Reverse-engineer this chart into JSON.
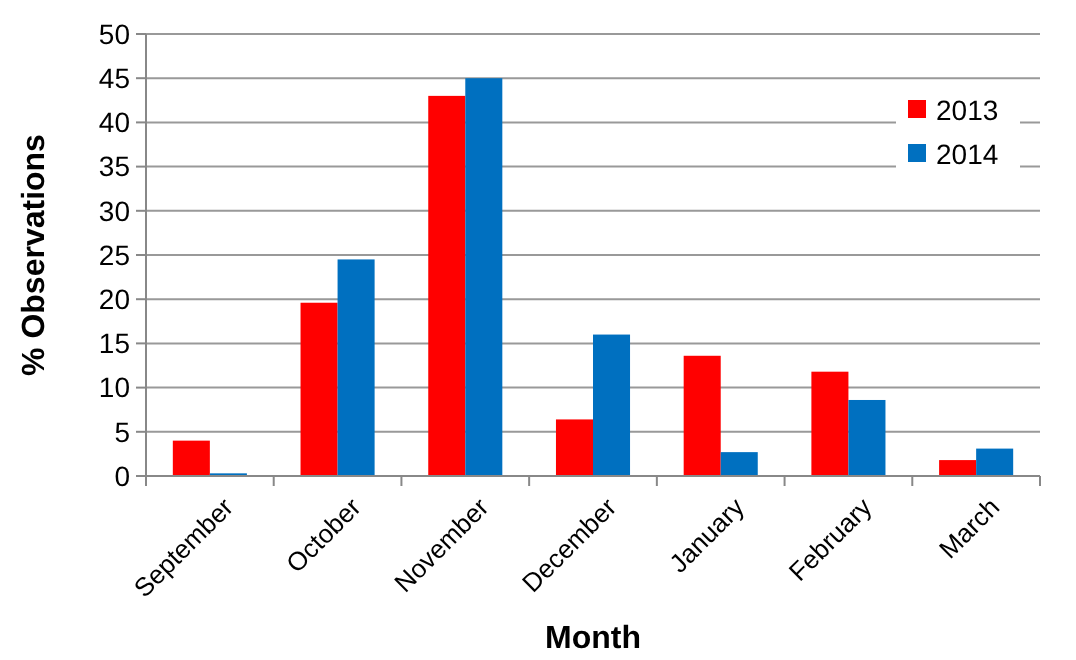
{
  "chart_data": {
    "type": "bar",
    "xlabel": "Month",
    "ylabel": "% Observations",
    "categories": [
      "September",
      "October",
      "November",
      "December",
      "January",
      "February",
      "March"
    ],
    "series": [
      {
        "name": "2013",
        "color": "#ff0000",
        "values": [
          4,
          19.6,
          43,
          6.4,
          13.6,
          11.8,
          1.8
        ]
      },
      {
        "name": "2014",
        "color": "#0070c0",
        "values": [
          0.3,
          24.5,
          45,
          16,
          2.7,
          8.6,
          3.1
        ]
      }
    ],
    "ylim": [
      0,
      50
    ],
    "yticks": [
      0,
      5,
      10,
      15,
      20,
      25,
      30,
      35,
      40,
      45,
      50
    ],
    "grid": "y",
    "legend": "top right"
  }
}
